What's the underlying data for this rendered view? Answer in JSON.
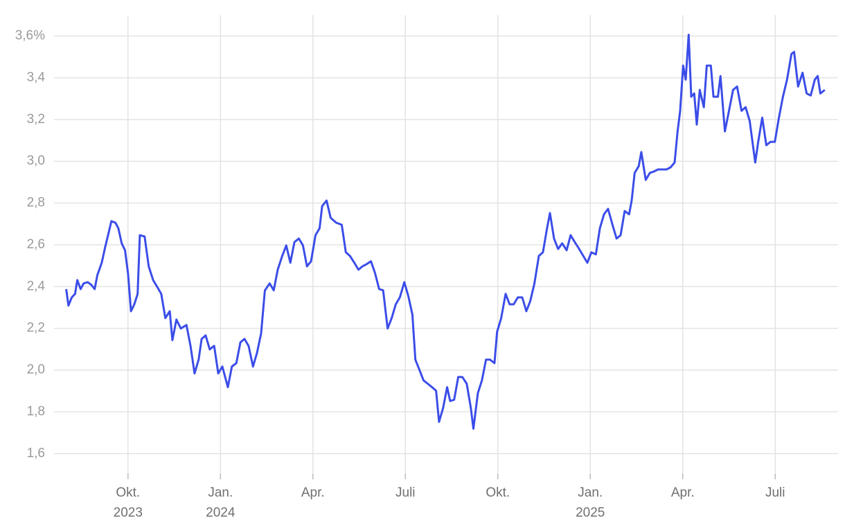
{
  "chart_data": {
    "type": "line",
    "color": "#3b4de8",
    "grid": true,
    "xlim": [
      2023.55,
      2025.67
    ],
    "ylim": [
      1.52,
      3.64
    ],
    "xticks": [
      {
        "value": 2023.75,
        "label": "Okt.",
        "year": "2023"
      },
      {
        "value": 2024.0,
        "label": "Jan.",
        "year": "2024"
      },
      {
        "value": 2024.25,
        "label": "Apr."
      },
      {
        "value": 2024.5,
        "label": "Juli"
      },
      {
        "value": 2024.75,
        "label": "Okt."
      },
      {
        "value": 2025.0,
        "label": "Jan.",
        "year": "2025"
      },
      {
        "value": 2025.25,
        "label": "Apr."
      },
      {
        "value": 2025.5,
        "label": "Juli"
      }
    ],
    "yticks": [
      {
        "value": 1.6,
        "label": "1,6"
      },
      {
        "value": 1.8,
        "label": "1,8"
      },
      {
        "value": 2.0,
        "label": "2,0"
      },
      {
        "value": 2.2,
        "label": "2,2"
      },
      {
        "value": 2.4,
        "label": "2,4"
      },
      {
        "value": 2.6,
        "label": "2,6"
      },
      {
        "value": 2.8,
        "label": "2,8"
      },
      {
        "value": 3.0,
        "label": "3,0"
      },
      {
        "value": 3.2,
        "label": "3,2"
      },
      {
        "value": 3.4,
        "label": "3,4"
      },
      {
        "value": 3.6,
        "label": "3,6%"
      }
    ],
    "x": [
      2023.583,
      2023.589,
      2023.598,
      2023.607,
      2023.613,
      2023.622,
      2023.63,
      2023.641,
      2023.651,
      2023.66,
      2023.667,
      2023.679,
      2023.688,
      2023.697,
      2023.705,
      2023.716,
      2023.724,
      2023.733,
      2023.742,
      2023.75,
      2023.758,
      2023.767,
      2023.776,
      2023.782,
      2023.795,
      2023.806,
      2023.818,
      2023.829,
      2023.84,
      2023.851,
      2023.863,
      2023.87,
      2023.881,
      2023.893,
      2023.908,
      2023.919,
      2023.93,
      2023.941,
      2023.949,
      2023.96,
      2023.971,
      2023.983,
      2023.994,
      2024.005,
      2024.02,
      2024.031,
      2024.043,
      2024.054,
      2024.065,
      2024.076,
      2024.088,
      2024.099,
      2024.11,
      2024.12,
      2024.133,
      2024.144,
      2024.155,
      2024.167,
      2024.178,
      2024.189,
      2024.2,
      2024.212,
      2024.223,
      2024.234,
      2024.245,
      2024.257,
      2024.268,
      2024.275,
      2024.287,
      2024.298,
      2024.313,
      2024.328,
      2024.339,
      2024.35,
      2024.362,
      2024.373,
      2024.384,
      2024.395,
      2024.407,
      2024.418,
      2024.429,
      2024.44,
      2024.452,
      2024.463,
      2024.474,
      2024.485,
      2024.497,
      2024.508,
      2024.519,
      2024.527,
      2024.538,
      2024.549,
      2024.561,
      2024.572,
      2024.583,
      2024.591,
      2024.602,
      2024.613,
      2024.621,
      2024.632,
      2024.643,
      2024.654,
      2024.666,
      2024.677,
      2024.684,
      2024.696,
      2024.707,
      2024.718,
      2024.729,
      2024.741,
      2024.748,
      2024.759,
      2024.771,
      2024.782,
      2024.793,
      2024.804,
      2024.816,
      2024.827,
      2024.838,
      2024.849,
      2024.861,
      2024.872,
      2024.883,
      2024.891,
      2024.902,
      2024.913,
      2024.924,
      2024.936,
      2024.947,
      2024.958,
      2024.97,
      2024.981,
      2024.992,
      2025.003,
      2025.015,
      2025.026,
      2025.037,
      2025.048,
      2025.06,
      2025.071,
      2025.082,
      2025.093,
      2025.105,
      2025.112,
      2025.12,
      2025.131,
      2025.138,
      2025.15,
      2025.161,
      2025.172,
      2025.183,
      2025.195,
      2025.206,
      2025.217,
      2025.228,
      2025.236,
      2025.243,
      2025.251,
      2025.258,
      2025.266,
      2025.273,
      2025.281,
      2025.288,
      2025.296,
      2025.307,
      2025.315,
      2025.326,
      2025.333,
      2025.345,
      2025.352,
      2025.364,
      2025.375,
      2025.386,
      2025.397,
      2025.409,
      2025.42,
      2025.431,
      2025.446,
      2025.454,
      2025.465,
      2025.476,
      2025.487,
      2025.499,
      2025.51,
      2025.521,
      2025.532,
      2025.544,
      2025.551,
      2025.562,
      2025.574,
      2025.585,
      2025.596,
      2025.607,
      2025.615,
      2025.622,
      2025.634
    ],
    "values": [
      2.388,
      2.309,
      2.348,
      2.365,
      2.431,
      2.388,
      2.415,
      2.421,
      2.408,
      2.388,
      2.454,
      2.514,
      2.587,
      2.653,
      2.713,
      2.706,
      2.679,
      2.607,
      2.574,
      2.464,
      2.282,
      2.315,
      2.365,
      2.646,
      2.64,
      2.497,
      2.431,
      2.398,
      2.365,
      2.249,
      2.282,
      2.143,
      2.242,
      2.199,
      2.216,
      2.117,
      1.984,
      2.05,
      2.149,
      2.166,
      2.099,
      2.116,
      1.984,
      2.017,
      1.918,
      2.017,
      2.033,
      2.133,
      2.149,
      2.116,
      2.017,
      2.083,
      2.176,
      2.381,
      2.415,
      2.382,
      2.481,
      2.547,
      2.597,
      2.514,
      2.613,
      2.63,
      2.597,
      2.497,
      2.521,
      2.646,
      2.679,
      2.785,
      2.812,
      2.729,
      2.706,
      2.696,
      2.564,
      2.547,
      2.514,
      2.481,
      2.497,
      2.507,
      2.521,
      2.464,
      2.388,
      2.382,
      2.199,
      2.249,
      2.315,
      2.348,
      2.421,
      2.355,
      2.266,
      2.05,
      2.001,
      1.951,
      1.934,
      1.918,
      1.901,
      1.752,
      1.818,
      1.918,
      1.852,
      1.858,
      1.967,
      1.967,
      1.934,
      1.818,
      1.719,
      1.889,
      1.951,
      2.05,
      2.05,
      2.033,
      2.183,
      2.249,
      2.365,
      2.315,
      2.315,
      2.348,
      2.348,
      2.282,
      2.332,
      2.415,
      2.547,
      2.564,
      2.679,
      2.752,
      2.63,
      2.58,
      2.607,
      2.574,
      2.646,
      2.613,
      2.58,
      2.547,
      2.514,
      2.564,
      2.554,
      2.679,
      2.746,
      2.772,
      2.696,
      2.63,
      2.646,
      2.762,
      2.746,
      2.812,
      2.944,
      2.977,
      3.044,
      2.911,
      2.944,
      2.951,
      2.961,
      2.961,
      2.961,
      2.971,
      2.994,
      3.143,
      3.242,
      3.458,
      3.391,
      3.606,
      3.309,
      3.325,
      3.176,
      3.342,
      3.259,
      3.458,
      3.458,
      3.309,
      3.309,
      3.408,
      3.143,
      3.242,
      3.342,
      3.358,
      3.242,
      3.259,
      3.193,
      2.994,
      3.093,
      3.209,
      3.077,
      3.093,
      3.093,
      3.209,
      3.309,
      3.391,
      3.514,
      3.524,
      3.358,
      3.424,
      3.325,
      3.315,
      3.391,
      3.408,
      3.325,
      3.342
    ]
  }
}
